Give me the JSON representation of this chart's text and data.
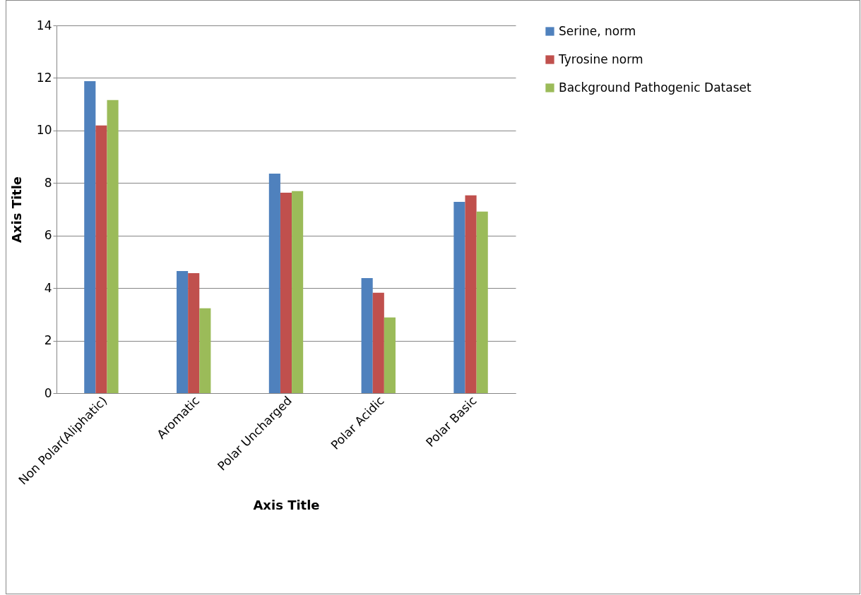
{
  "chart_data": {
    "type": "bar",
    "xlabel": "Axis Title",
    "ylabel": "Axis Title",
    "categories": [
      "Non Polar(Aliphatic)",
      "Aromatic",
      "Polar Uncharged",
      "Polar Acidic",
      "Polar Basic"
    ],
    "series": [
      {
        "name": "Serine, norm",
        "color": "#4f81bd",
        "values": [
          11.88,
          4.65,
          8.36,
          4.38,
          7.28
        ]
      },
      {
        "name": "Tyrosine norm",
        "color": "#c0504d",
        "values": [
          10.19,
          4.57,
          7.63,
          3.82,
          7.53
        ]
      },
      {
        "name": "Background Pathogenic Dataset",
        "color": "#9bbb59",
        "values": [
          11.16,
          3.23,
          7.69,
          2.88,
          6.91
        ]
      }
    ],
    "ylim": [
      0,
      14
    ],
    "yticks": [
      0,
      2,
      4,
      6,
      8,
      10,
      12,
      14
    ],
    "grid": "y",
    "legend": "right"
  }
}
